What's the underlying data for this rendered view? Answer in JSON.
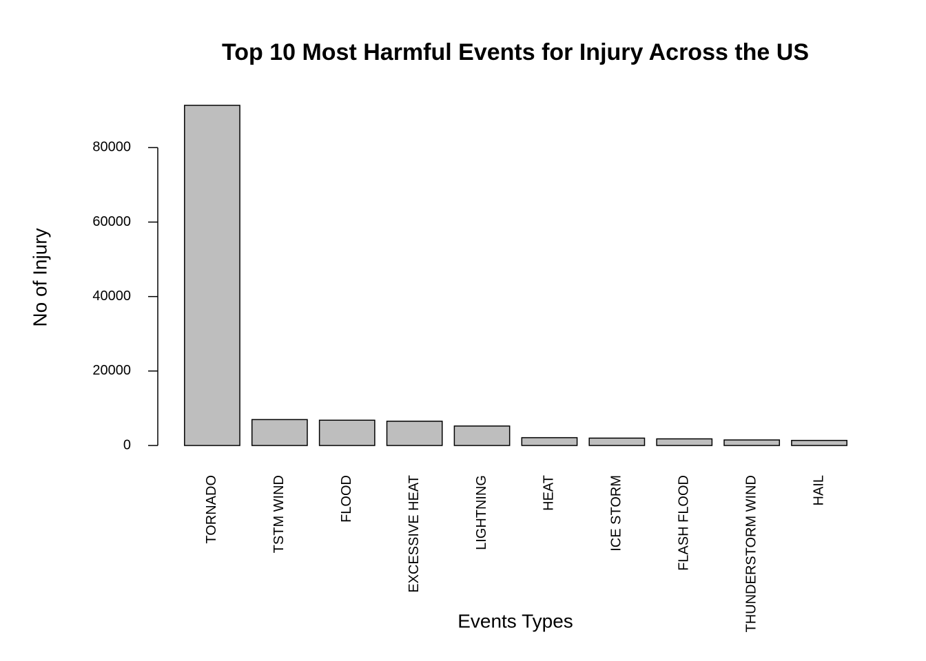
{
  "chart_data": {
    "type": "bar",
    "title": "Top 10 Most Harmful Events for Injury Across the US",
    "x_label": "Events Types",
    "y_label": "No of Injury",
    "categories": [
      "TORNADO",
      "TSTM WIND",
      "FLOOD",
      "EXCESSIVE HEAT",
      "LIGHTNING",
      "HEAT",
      "ICE STORM",
      "FLASH FLOOD",
      "THUNDERSTORM WIND",
      "HAIL"
    ],
    "values": [
      91346,
      6957,
      6789,
      6525,
      5230,
      2100,
      1975,
      1777,
      1488,
      1361
    ],
    "color": "#bebebe",
    "ylim": [
      0,
      91346
    ],
    "yticks": [
      0,
      20000,
      40000,
      60000,
      80000
    ],
    "grid": false
  }
}
